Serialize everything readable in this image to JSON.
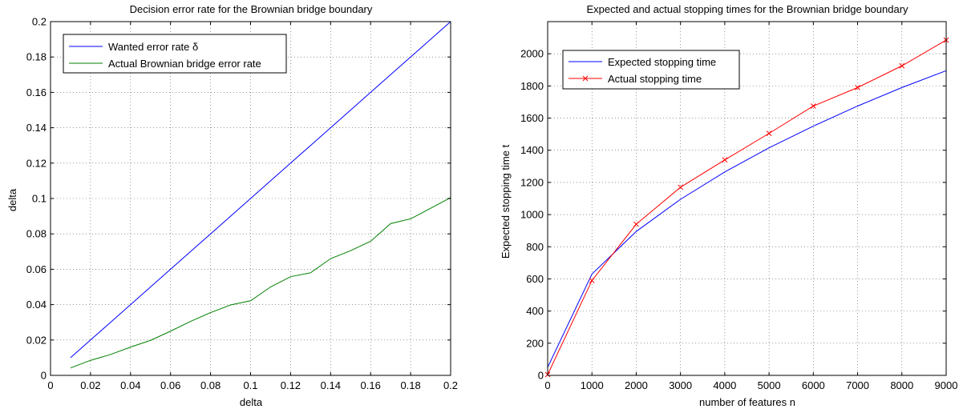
{
  "chart_data": [
    {
      "type": "line",
      "title": "Decision error rate for the Brownian bridge boundary",
      "xlabel": "delta",
      "ylabel": "delta",
      "xlim": [
        0,
        0.2
      ],
      "ylim": [
        0,
        0.2
      ],
      "x_ticks": [
        "0",
        "0.02",
        "0.04",
        "0.06",
        "0.08",
        "0.1",
        "0.12",
        "0.14",
        "0.16",
        "0.18",
        "0.2"
      ],
      "y_ticks": [
        "0",
        "0.02",
        "0.04",
        "0.06",
        "0.08",
        "0.1",
        "0.12",
        "0.14",
        "0.16",
        "0.18",
        "0.2"
      ],
      "grid": true,
      "legend_position": "top-left",
      "series": [
        {
          "name": "Wanted error rate δ",
          "color": "#0000ff",
          "marker": "none",
          "x": [
            0.01,
            0.02,
            0.03,
            0.04,
            0.05,
            0.06,
            0.07,
            0.08,
            0.09,
            0.1,
            0.11,
            0.12,
            0.13,
            0.14,
            0.15,
            0.16,
            0.17,
            0.18,
            0.19,
            0.2
          ],
          "y": [
            0.01,
            0.02,
            0.03,
            0.04,
            0.05,
            0.06,
            0.07,
            0.08,
            0.09,
            0.1,
            0.11,
            0.12,
            0.13,
            0.14,
            0.15,
            0.16,
            0.17,
            0.18,
            0.19,
            0.2
          ]
        },
        {
          "name": "Actual Brownian bridge error rate",
          "color": "#008000",
          "marker": "none",
          "x": [
            0.01,
            0.02,
            0.03,
            0.04,
            0.05,
            0.06,
            0.07,
            0.08,
            0.09,
            0.1,
            0.11,
            0.12,
            0.13,
            0.14,
            0.15,
            0.16,
            0.17,
            0.18,
            0.19,
            0.2
          ],
          "y": [
            0.0042,
            0.0085,
            0.0118,
            0.016,
            0.0198,
            0.025,
            0.0305,
            0.0355,
            0.0398,
            0.0422,
            0.05,
            0.0558,
            0.058,
            0.066,
            0.0705,
            0.0758,
            0.0858,
            0.0885,
            0.0945,
            0.1005
          ]
        }
      ]
    },
    {
      "type": "line",
      "title": "Expected and actual stopping times for the Brownian bridge boundary",
      "xlabel": "number of features n",
      "ylabel": "Expected stopping time t",
      "xlim": [
        0,
        9000
      ],
      "ylim": [
        0,
        2200
      ],
      "x_ticks": [
        "0",
        "1000",
        "2000",
        "3000",
        "4000",
        "5000",
        "6000",
        "7000",
        "8000",
        "9000"
      ],
      "y_ticks": [
        "0",
        "200",
        "400",
        "600",
        "800",
        "1000",
        "1200",
        "1400",
        "1600",
        "1800",
        "2000"
      ],
      "grid": true,
      "legend_position": "top-left",
      "series": [
        {
          "name": "Expected stopping time",
          "color": "#0000ff",
          "marker": "none",
          "x": [
            0,
            1000,
            2000,
            3000,
            4000,
            5000,
            6000,
            7000,
            8000,
            9000
          ],
          "y": [
            50,
            630,
            895,
            1095,
            1265,
            1415,
            1550,
            1675,
            1790,
            1895
          ]
        },
        {
          "name": "Actual stopping time",
          "color": "#ff0000",
          "marker": "x",
          "x": [
            0,
            1000,
            2000,
            3000,
            4000,
            5000,
            6000,
            7000,
            8000,
            9000
          ],
          "y": [
            5,
            590,
            940,
            1170,
            1340,
            1505,
            1675,
            1790,
            1925,
            2085
          ]
        }
      ]
    }
  ]
}
